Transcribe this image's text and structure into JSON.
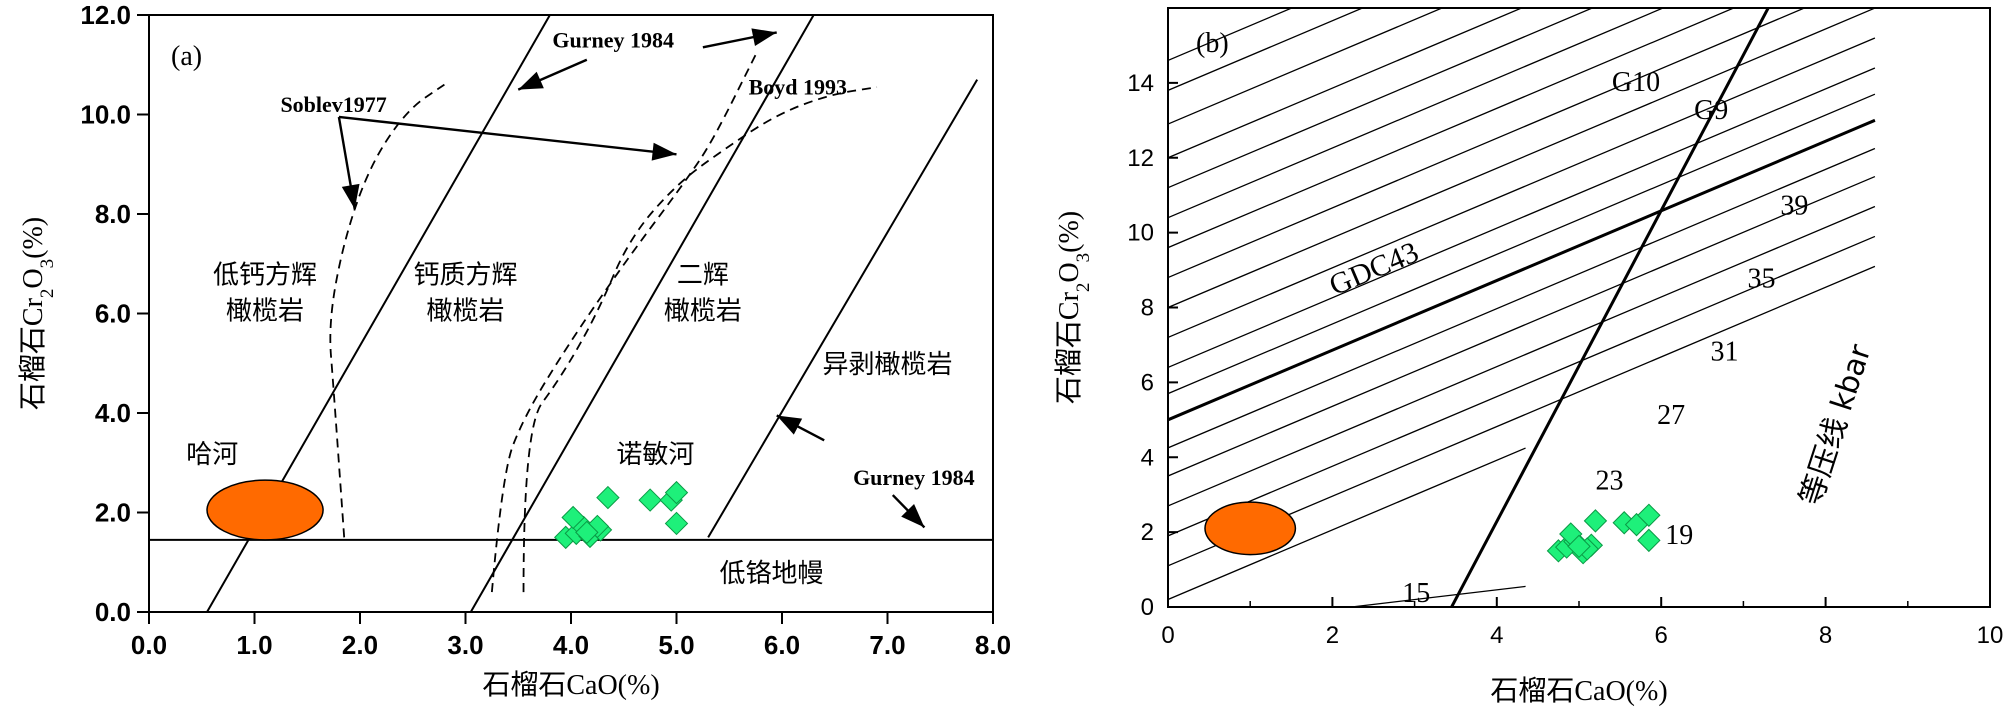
{
  "chart_data": [
    {
      "type": "scatter",
      "panel_label": "(a)",
      "xlabel": "石榴石CaO(%)",
      "ylabel_parts": [
        "石榴石Cr",
        "2",
        "O",
        "3",
        "(%)"
      ],
      "xlim": [
        0,
        8
      ],
      "ylim": [
        0,
        12
      ],
      "xticks": [
        "0.0",
        "1.0",
        "2.0",
        "3.0",
        "4.0",
        "5.0",
        "6.0",
        "7.0",
        "8.0"
      ],
      "yticks": [
        "0.0",
        "2.0",
        "4.0",
        "6.0",
        "8.0",
        "10.0",
        "12.0"
      ],
      "boundary_lines": [
        {
          "x1": 0.55,
          "y1": 0,
          "x2": 3.8,
          "y2": 12
        },
        {
          "x1": 3.05,
          "y1": 0,
          "x2": 6.3,
          "y2": 12
        },
        {
          "x1": 5.3,
          "y1": 1.5,
          "x2": 7.85,
          "y2": 10.7
        }
      ],
      "low_cr_line_y": 1.45,
      "dashed_curves": [
        {
          "name": "Soblev1977",
          "points": [
            [
              1.85,
              1.5
            ],
            [
              1.75,
              4.5
            ],
            [
              1.7,
              5.8
            ],
            [
              1.85,
              7.5
            ],
            [
              2.1,
              9.0
            ],
            [
              2.45,
              10.1
            ],
            [
              2.8,
              10.6
            ]
          ]
        },
        {
          "name": "Gurney1984",
          "points": [
            [
              3.25,
              0.4
            ],
            [
              3.35,
              2.8
            ],
            [
              3.55,
              3.9
            ],
            [
              3.95,
              5.3
            ],
            [
              4.5,
              7.0
            ],
            [
              5.1,
              8.7
            ],
            [
              5.35,
              9.5
            ],
            [
              5.75,
              11.2
            ]
          ]
        },
        {
          "name": "Boyd1993",
          "points": [
            [
              3.55,
              0.4
            ],
            [
              3.55,
              3.7
            ],
            [
              3.9,
              4.7
            ],
            [
              4.25,
              6.0
            ],
            [
              4.55,
              7.5
            ],
            [
              5.0,
              8.6
            ],
            [
              5.45,
              9.3
            ],
            [
              5.95,
              10.0
            ],
            [
              6.45,
              10.4
            ],
            [
              6.9,
              10.55
            ]
          ]
        }
      ],
      "field_labels": [
        {
          "lines": [
            "低钙方辉",
            "橄榄岩"
          ],
          "x": 1.1,
          "y": 6.6
        },
        {
          "lines": [
            "钙质方辉",
            "橄榄岩"
          ],
          "x": 3.0,
          "y": 6.6
        },
        {
          "lines": [
            "二辉",
            "橄榄岩"
          ],
          "x": 5.25,
          "y": 6.6
        },
        {
          "lines": [
            "异剥橄榄岩"
          ],
          "x": 7.0,
          "y": 4.8
        },
        {
          "lines": [
            "低铬地幔"
          ],
          "x": 5.9,
          "y": 0.6
        },
        {
          "lines": [
            "诺敏河"
          ],
          "x": 4.8,
          "y": 3.0
        },
        {
          "lines": [
            "哈河"
          ],
          "x": 0.6,
          "y": 3.0
        }
      ],
      "annotations": [
        {
          "text": "Soblev1977",
          "x": 1.75,
          "y": 10.05,
          "anchor": "middle"
        },
        {
          "text": "Gurney 1984",
          "x": 4.4,
          "y": 11.35,
          "anchor": "middle"
        },
        {
          "text": "Boyd 1993",
          "x": 6.15,
          "y": 10.4,
          "anchor": "middle"
        },
        {
          "text": "Gurney 1984",
          "x": 7.25,
          "y": 2.55,
          "anchor": "middle"
        }
      ],
      "arrows": [
        {
          "x1": 4.15,
          "y1": 11.1,
          "x2": 3.5,
          "y2": 10.5
        },
        {
          "x1": 5.25,
          "y1": 11.35,
          "x2": 5.95,
          "y2": 11.65
        },
        {
          "x1": 1.8,
          "y1": 9.95,
          "x2": 5.0,
          "y2": 9.2
        },
        {
          "x1": 1.8,
          "y1": 9.95,
          "x2": 1.95,
          "y2": 8.1
        },
        {
          "x1": 6.4,
          "y1": 3.45,
          "x2": 5.95,
          "y2": 3.95
        },
        {
          "x1": 7.05,
          "y1": 2.35,
          "x2": 7.35,
          "y2": 1.7
        }
      ],
      "ellipse": {
        "label": "哈河",
        "cx": 1.1,
        "cy": 2.05,
        "rx": 0.55,
        "ry": 0.6,
        "color": "#ff6a00"
      },
      "points": {
        "label": "诺敏河",
        "color": "#1ef07a",
        "x": [
          3.95,
          4.05,
          4.12,
          4.18,
          4.28,
          4.02,
          4.25,
          4.35,
          4.75,
          4.95,
          5.0,
          5.0,
          4.15
        ],
        "y": [
          1.5,
          1.58,
          1.7,
          1.52,
          1.65,
          1.9,
          1.72,
          2.3,
          2.25,
          2.25,
          2.4,
          1.78,
          1.6
        ]
      }
    },
    {
      "type": "scatter",
      "panel_label": "(b)",
      "xlabel": "石榴石CaO(%)",
      "ylabel_parts": [
        "石榴石Cr",
        "2",
        "O",
        "3",
        "(%)"
      ],
      "xlim": [
        0,
        10
      ],
      "ylim": [
        0,
        16
      ],
      "xticks": [
        "0",
        "2",
        "4",
        "6",
        "8",
        "10"
      ],
      "yticks": [
        "0",
        "2",
        "4",
        "6",
        "8",
        "10",
        "12",
        "14"
      ],
      "isobar_slope": 0.93,
      "isobar_intercepts": [
        0.2,
        1.1,
        1.9,
        2.7,
        3.5,
        4.25,
        5.0,
        5.7,
        6.4,
        7.2,
        8.0,
        8.8,
        9.6,
        10.4,
        11.2,
        12.0,
        12.9,
        13.8,
        14.6
      ],
      "isobar_labels": [
        {
          "text": "15",
          "x": 2.85,
          "y": 0.4
        },
        {
          "text": "19",
          "x": 6.05,
          "y": 1.95
        },
        {
          "text": "23",
          "x": 5.2,
          "y": 3.4
        },
        {
          "text": "27",
          "x": 5.95,
          "y": 5.15
        },
        {
          "text": "31",
          "x": 6.6,
          "y": 6.85
        },
        {
          "text": "35",
          "x": 7.05,
          "y": 8.8
        },
        {
          "text": "39",
          "x": 7.45,
          "y": 10.75
        }
      ],
      "gdc43": {
        "label": "GDC43",
        "x1": 0,
        "y1": 5.0,
        "x2": 8.6,
        "y2": 13.0,
        "label_x": 2.55,
        "label_y": 8.8
      },
      "g10_g9": {
        "x1": 3.45,
        "y1": 0,
        "x2": 7.35,
        "y2": 16.2
      },
      "g_labels": [
        {
          "text": "G10",
          "x": 5.4,
          "y": 14.05
        },
        {
          "text": "G9",
          "x": 6.4,
          "y": 13.3
        }
      ],
      "isobar_title": "等压线 kbar",
      "ellipse": {
        "label": "哈河",
        "cx": 1.0,
        "cy": 2.1,
        "rx": 0.55,
        "ry": 0.7,
        "color": "#ff6a00"
      },
      "points": {
        "label": "诺敏河",
        "color": "#1ef07a",
        "x": [
          4.75,
          4.85,
          4.95,
          5.05,
          5.15,
          4.9,
          5.1,
          5.2,
          5.55,
          5.7,
          5.85,
          5.85,
          5.0
        ],
        "y": [
          1.5,
          1.6,
          1.75,
          1.45,
          1.65,
          1.95,
          1.55,
          2.3,
          2.25,
          2.2,
          2.45,
          1.78,
          1.62
        ]
      }
    }
  ]
}
